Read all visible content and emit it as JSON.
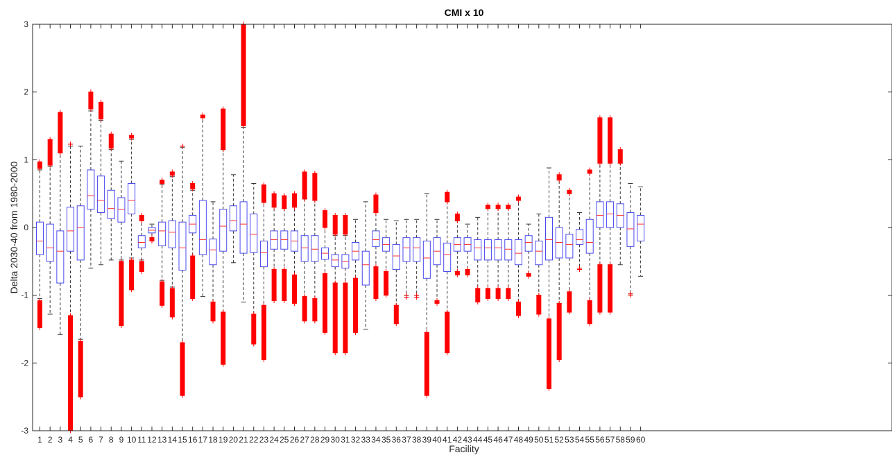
{
  "chart_data": {
    "type": "box",
    "title": "CMI x 10",
    "xlabel": "Facility",
    "ylabel": "Delta 2030-40 from  1980-2000",
    "ylim": [
      -3,
      3
    ],
    "yticks": [
      -3,
      -2,
      -1,
      0,
      1,
      2,
      3
    ],
    "ytick_labels": [
      "-3",
      "-2",
      "-1",
      "0",
      "1",
      "2",
      "3"
    ],
    "grid": false,
    "colors": {
      "box": "#4a4af0",
      "median": "#ff3030",
      "whisker": "#333333",
      "outlier": "#ff0000",
      "axis": "#262626"
    },
    "categories": [
      "1",
      "2",
      "3",
      "4",
      "5",
      "6",
      "7",
      "8",
      "9",
      "10",
      "11",
      "12",
      "13",
      "14",
      "15",
      "16",
      "17",
      "18",
      "19",
      "20",
      "21",
      "22",
      "23",
      "24",
      "25",
      "26",
      "27",
      "28",
      "29",
      "30",
      "31",
      "32",
      "33",
      "34",
      "35",
      "36",
      "37",
      "38",
      "39",
      "40",
      "41",
      "42",
      "43",
      "44",
      "45",
      "46",
      "47",
      "48",
      "49",
      "50",
      "51",
      "52",
      "53",
      "54",
      "55",
      "56",
      "57",
      "58",
      "59",
      "60"
    ],
    "boxes": [
      {
        "q1": -0.4,
        "med": -0.2,
        "q3": 0.08,
        "wlo": -1.05,
        "whi": 0.85,
        "out_lo": [
          -1.48,
          -1.08
        ],
        "out_hi": [
          0.87,
          0.97
        ]
      },
      {
        "q1": -0.5,
        "med": -0.3,
        "q3": 0.05,
        "wlo": -1.28,
        "whi": 0.9,
        "out_lo": [],
        "out_hi": [
          0.92,
          1.3
        ]
      },
      {
        "q1": -0.82,
        "med": -0.35,
        "q3": -0.05,
        "wlo": -1.58,
        "whi": 1.1,
        "out_lo": [],
        "out_hi": [
          1.1,
          1.7
        ]
      },
      {
        "q1": -0.35,
        "med": -0.05,
        "q3": 0.3,
        "wlo": -1.3,
        "whi": 1.2,
        "out_lo": [
          -3.0,
          -1.3
        ],
        "out_hi": [
          1.23,
          1.23
        ]
      },
      {
        "q1": -0.48,
        "med": 0.0,
        "q3": 0.32,
        "wlo": -1.65,
        "whi": 1.2,
        "out_lo": [
          -2.5,
          -1.68
        ],
        "out_hi": []
      },
      {
        "q1": 0.27,
        "med": 0.47,
        "q3": 0.85,
        "wlo": -0.6,
        "whi": 1.72,
        "out_lo": [],
        "out_hi": [
          1.75,
          2.0
        ]
      },
      {
        "q1": 0.22,
        "med": 0.4,
        "q3": 0.76,
        "wlo": -0.55,
        "whi": 1.58,
        "out_lo": [],
        "out_hi": [
          1.6,
          1.85
        ]
      },
      {
        "q1": 0.13,
        "med": 0.28,
        "q3": 0.55,
        "wlo": -0.48,
        "whi": 1.15,
        "out_lo": [],
        "out_hi": [
          1.17,
          1.38
        ]
      },
      {
        "q1": 0.08,
        "med": 0.27,
        "q3": 0.44,
        "wlo": -0.48,
        "whi": 0.98,
        "out_lo": [
          -1.45,
          -0.5
        ],
        "out_hi": []
      },
      {
        "q1": 0.2,
        "med": 0.4,
        "q3": 0.65,
        "wlo": -0.45,
        "whi": 1.3,
        "out_lo": [
          -0.92,
          -0.48
        ],
        "out_hi": [
          1.32,
          1.36
        ]
      },
      {
        "q1": -0.3,
        "med": -0.22,
        "q3": -0.12,
        "wlo": -0.48,
        "whi": 0.1,
        "out_lo": [
          -0.65,
          -0.5
        ],
        "out_hi": [
          0.1,
          0.18
        ]
      },
      {
        "q1": -0.08,
        "med": -0.04,
        "q3": 0.0,
        "wlo": -0.15,
        "whi": 0.05,
        "out_lo": [
          -0.2,
          -0.15
        ],
        "out_hi": []
      },
      {
        "q1": -0.27,
        "med": -0.05,
        "q3": 0.08,
        "wlo": -0.78,
        "whi": 0.63,
        "out_lo": [
          -1.15,
          -0.8
        ],
        "out_hi": [
          0.65,
          0.7
        ]
      },
      {
        "q1": -0.3,
        "med": -0.07,
        "q3": 0.1,
        "wlo": -0.88,
        "whi": 0.75,
        "out_lo": [
          -1.32,
          -0.9
        ],
        "out_hi": [
          0.77,
          0.82
        ]
      },
      {
        "q1": -0.63,
        "med": -0.3,
        "q3": 0.08,
        "wlo": -1.7,
        "whi": 1.18,
        "out_lo": [
          -2.48,
          -1.7
        ],
        "out_hi": [
          1.2,
          1.2
        ]
      },
      {
        "q1": -0.08,
        "med": 0.05,
        "q3": 0.18,
        "wlo": -0.42,
        "whi": 0.55,
        "out_lo": [
          -1.05,
          -0.42
        ],
        "out_hi": [
          0.57,
          0.65
        ]
      },
      {
        "q1": -0.4,
        "med": -0.18,
        "q3": 0.4,
        "wlo": -1.02,
        "whi": 1.62,
        "out_lo": [],
        "out_hi": [
          1.62,
          1.66
        ]
      },
      {
        "q1": -0.55,
        "med": -0.33,
        "q3": -0.17,
        "wlo": -1.1,
        "whi": 0.38,
        "out_lo": [
          -1.38,
          -1.1
        ],
        "out_hi": []
      },
      {
        "q1": -0.35,
        "med": 0.02,
        "q3": 0.27,
        "wlo": -1.25,
        "whi": 1.15,
        "out_lo": [
          -2.02,
          -1.25
        ],
        "out_hi": [
          1.15,
          1.75
        ]
      },
      {
        "q1": -0.05,
        "med": 0.1,
        "q3": 0.32,
        "wlo": -0.52,
        "whi": 0.78,
        "out_lo": [],
        "out_hi": []
      },
      {
        "q1": -0.38,
        "med": 0.05,
        "q3": 0.38,
        "wlo": -1.1,
        "whi": 1.48,
        "out_lo": [],
        "out_hi": [
          1.5,
          3.0
        ]
      },
      {
        "q1": -0.37,
        "med": -0.1,
        "q3": 0.2,
        "wlo": -1.28,
        "whi": 0.65,
        "out_lo": [
          -1.72,
          -1.28
        ],
        "out_hi": []
      },
      {
        "q1": -0.58,
        "med": -0.37,
        "q3": -0.2,
        "wlo": -1.15,
        "whi": 0.37,
        "out_lo": [
          -1.95,
          -1.15
        ],
        "out_hi": [
          0.37,
          0.63
        ]
      },
      {
        "q1": -0.32,
        "med": -0.18,
        "q3": -0.05,
        "wlo": -0.62,
        "whi": 0.3,
        "out_lo": [
          -1.08,
          -0.62
        ],
        "out_hi": [
          0.3,
          0.5
        ]
      },
      {
        "q1": -0.32,
        "med": -0.18,
        "q3": -0.05,
        "wlo": -0.62,
        "whi": 0.28,
        "out_lo": [
          -1.08,
          -0.62
        ],
        "out_hi": [
          0.28,
          0.47
        ]
      },
      {
        "q1": -0.35,
        "med": -0.2,
        "q3": -0.05,
        "wlo": -0.7,
        "whi": 0.3,
        "out_lo": [
          -1.12,
          -0.7
        ],
        "out_hi": [
          0.3,
          0.5
        ]
      },
      {
        "q1": -0.5,
        "med": -0.3,
        "q3": -0.12,
        "wlo": -1.02,
        "whi": 0.42,
        "out_lo": [
          -1.38,
          -1.02
        ],
        "out_hi": [
          0.42,
          0.82
        ]
      },
      {
        "q1": -0.5,
        "med": -0.32,
        "q3": -0.12,
        "wlo": -1.05,
        "whi": 0.4,
        "out_lo": [
          -1.38,
          -1.05
        ],
        "out_hi": [
          0.4,
          0.8
        ]
      },
      {
        "q1": -0.47,
        "med": -0.38,
        "q3": -0.3,
        "wlo": -0.68,
        "whi": 0.0,
        "out_lo": [
          -1.55,
          -0.68
        ],
        "out_hi": [
          0.0,
          0.25
        ]
      },
      {
        "q1": -0.58,
        "med": -0.48,
        "q3": -0.4,
        "wlo": -0.82,
        "whi": -0.12,
        "out_lo": [
          -1.85,
          -0.82
        ],
        "out_hi": [
          -0.1,
          0.18
        ]
      },
      {
        "q1": -0.6,
        "med": -0.5,
        "q3": -0.4,
        "wlo": -0.82,
        "whi": -0.12,
        "out_lo": [
          -1.85,
          -0.82
        ],
        "out_hi": [
          -0.1,
          0.18
        ]
      },
      {
        "q1": -0.48,
        "med": -0.35,
        "q3": -0.22,
        "wlo": -0.75,
        "whi": 0.12,
        "out_lo": [
          -1.55,
          -0.75
        ],
        "out_hi": []
      },
      {
        "q1": -0.85,
        "med": -0.55,
        "q3": -0.35,
        "wlo": -1.5,
        "whi": 0.38,
        "out_lo": [],
        "out_hi": []
      },
      {
        "q1": -0.28,
        "med": -0.18,
        "q3": -0.05,
        "wlo": -0.58,
        "whi": 0.22,
        "out_lo": [
          -1.05,
          -0.58
        ],
        "out_hi": [
          0.22,
          0.48
        ]
      },
      {
        "q1": -0.35,
        "med": -0.25,
        "q3": -0.15,
        "wlo": -0.65,
        "whi": 0.12,
        "out_lo": [
          -1.0,
          -0.65
        ],
        "out_hi": []
      },
      {
        "q1": -0.62,
        "med": -0.42,
        "q3": -0.25,
        "wlo": -1.15,
        "whi": 0.1,
        "out_lo": [
          -1.42,
          -1.15
        ],
        "out_hi": []
      },
      {
        "q1": -0.5,
        "med": -0.3,
        "q3": -0.15,
        "wlo": -1.0,
        "whi": 0.12,
        "out_lo": [
          -1.03,
          -1.0
        ],
        "out_hi": []
      },
      {
        "q1": -0.5,
        "med": -0.3,
        "q3": -0.15,
        "wlo": -1.0,
        "whi": 0.12,
        "out_lo": [
          -1.03,
          -1.0
        ],
        "out_hi": []
      },
      {
        "q1": -0.75,
        "med": -0.45,
        "q3": -0.2,
        "wlo": -1.55,
        "whi": 0.5,
        "out_lo": [
          -2.48,
          -1.55
        ],
        "out_hi": []
      },
      {
        "q1": -0.55,
        "med": -0.35,
        "q3": -0.15,
        "wlo": -1.08,
        "whi": 0.12,
        "out_lo": [
          -1.12,
          -1.08
        ],
        "out_hi": []
      },
      {
        "q1": -0.65,
        "med": -0.4,
        "q3": -0.23,
        "wlo": -1.25,
        "whi": 0.38,
        "out_lo": [
          -1.85,
          -1.25
        ],
        "out_hi": [
          0.38,
          0.52
        ]
      },
      {
        "q1": -0.35,
        "med": -0.25,
        "q3": -0.15,
        "wlo": -0.65,
        "whi": 0.1,
        "out_lo": [
          -0.7,
          -0.65
        ],
        "out_hi": [
          0.1,
          0.2
        ]
      },
      {
        "q1": -0.35,
        "med": -0.25,
        "q3": -0.15,
        "wlo": -0.62,
        "whi": 0.05,
        "out_lo": [
          -0.7,
          -0.62
        ],
        "out_hi": []
      },
      {
        "q1": -0.48,
        "med": -0.3,
        "q3": -0.18,
        "wlo": -0.9,
        "whi": 0.15,
        "out_lo": [
          -1.1,
          -0.9
        ],
        "out_hi": []
      },
      {
        "q1": -0.48,
        "med": -0.3,
        "q3": -0.18,
        "wlo": -0.9,
        "whi": 0.28,
        "out_lo": [
          -1.05,
          -0.9
        ],
        "out_hi": [
          0.28,
          0.33
        ]
      },
      {
        "q1": -0.48,
        "med": -0.3,
        "q3": -0.18,
        "wlo": -0.9,
        "whi": 0.28,
        "out_lo": [
          -1.05,
          -0.9
        ],
        "out_hi": [
          0.28,
          0.33
        ]
      },
      {
        "q1": -0.48,
        "med": -0.32,
        "q3": -0.18,
        "wlo": -0.9,
        "whi": 0.28,
        "out_lo": [
          -1.05,
          -0.9
        ],
        "out_hi": [
          0.28,
          0.33
        ]
      },
      {
        "q1": -0.55,
        "med": -0.38,
        "q3": -0.18,
        "wlo": -1.1,
        "whi": 0.4,
        "out_lo": [
          -1.3,
          -1.1
        ],
        "out_hi": [
          0.4,
          0.45
        ]
      },
      {
        "q1": -0.35,
        "med": -0.22,
        "q3": -0.12,
        "wlo": -0.68,
        "whi": 0.05,
        "out_lo": [
          -0.72,
          -0.68
        ],
        "out_hi": []
      },
      {
        "q1": -0.55,
        "med": -0.35,
        "q3": -0.2,
        "wlo": -1.0,
        "whi": 0.2,
        "out_lo": [
          -1.28,
          -1.0
        ],
        "out_hi": []
      },
      {
        "q1": -0.48,
        "med": -0.18,
        "q3": 0.15,
        "wlo": -1.35,
        "whi": 0.88,
        "out_lo": [
          -2.38,
          -1.35
        ],
        "out_hi": []
      },
      {
        "q1": -0.45,
        "med": -0.22,
        "q3": 0.0,
        "wlo": -1.12,
        "whi": 0.7,
        "out_lo": [
          -1.95,
          -1.12
        ],
        "out_hi": [
          0.7,
          0.78
        ]
      },
      {
        "q1": -0.45,
        "med": -0.25,
        "q3": -0.1,
        "wlo": -0.95,
        "whi": 0.5,
        "out_lo": [
          -1.25,
          -0.95
        ],
        "out_hi": [
          0.5,
          0.55
        ]
      },
      {
        "q1": -0.25,
        "med": -0.18,
        "q3": -0.03,
        "wlo": -0.6,
        "whi": 0.22,
        "out_lo": [
          -0.62,
          -0.6
        ],
        "out_hi": []
      },
      {
        "q1": -0.38,
        "med": -0.22,
        "q3": 0.12,
        "wlo": -1.08,
        "whi": 0.8,
        "out_lo": [
          -1.42,
          -1.08
        ],
        "out_hi": [
          0.8,
          0.85
        ]
      },
      {
        "q1": 0.0,
        "med": 0.18,
        "q3": 0.38,
        "wlo": -0.55,
        "whi": 0.95,
        "out_lo": [
          -1.25,
          -0.55
        ],
        "out_hi": [
          0.95,
          1.62
        ]
      },
      {
        "q1": 0.0,
        "med": 0.2,
        "q3": 0.38,
        "wlo": -0.55,
        "whi": 0.95,
        "out_lo": [
          -1.25,
          -0.55
        ],
        "out_hi": [
          0.95,
          1.62
        ]
      },
      {
        "q1": 0.0,
        "med": 0.18,
        "q3": 0.35,
        "wlo": -0.55,
        "whi": 0.95,
        "out_lo": [],
        "out_hi": [
          0.95,
          1.15
        ]
      },
      {
        "q1": -0.28,
        "med": -0.02,
        "q3": 0.22,
        "wlo": -0.98,
        "whi": 0.65,
        "out_lo": [
          -1.0,
          -0.98
        ],
        "out_hi": []
      },
      {
        "q1": -0.2,
        "med": 0.05,
        "q3": 0.18,
        "wlo": -0.72,
        "whi": 0.6,
        "out_lo": [],
        "out_hi": []
      }
    ]
  }
}
